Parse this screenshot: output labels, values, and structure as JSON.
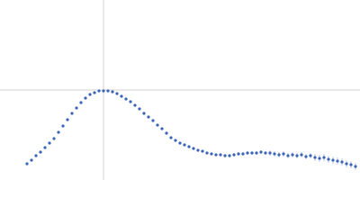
{
  "chart_data": {
    "type": "scatter",
    "xlim": [
      0,
      4
    ],
    "ylim": [
      0,
      2
    ],
    "reference_lines": {
      "x": 1.15,
      "y": 1.0,
      "color": "#d0d0d0"
    },
    "color": "#3a64b8",
    "error_color": "#9fb3dd",
    "x": [
      0.3,
      0.35,
      0.4,
      0.45,
      0.5,
      0.55,
      0.6,
      0.65,
      0.7,
      0.75,
      0.8,
      0.85,
      0.9,
      0.95,
      1.0,
      1.05,
      1.1,
      1.15,
      1.2,
      1.25,
      1.3,
      1.35,
      1.4,
      1.45,
      1.5,
      1.55,
      1.6,
      1.65,
      1.7,
      1.75,
      1.8,
      1.85,
      1.9,
      1.95,
      2.0,
      2.05,
      2.1,
      2.15,
      2.2,
      2.25,
      2.3,
      2.35,
      2.4,
      2.45,
      2.5,
      2.55,
      2.6,
      2.65,
      2.7,
      2.75,
      2.8,
      2.85,
      2.9,
      2.95,
      3.0,
      3.05,
      3.1,
      3.15,
      3.2,
      3.25,
      3.3,
      3.35,
      3.4,
      3.45,
      3.5,
      3.55,
      3.6,
      3.65,
      3.7,
      3.75,
      3.8,
      3.85,
      3.9,
      3.95
    ],
    "values": [
      0.18,
      0.22,
      0.27,
      0.31,
      0.36,
      0.41,
      0.46,
      0.53,
      0.6,
      0.67,
      0.74,
      0.8,
      0.86,
      0.91,
      0.95,
      0.97,
      0.99,
      0.99,
      0.99,
      0.98,
      0.96,
      0.93,
      0.9,
      0.87,
      0.83,
      0.79,
      0.74,
      0.7,
      0.66,
      0.61,
      0.57,
      0.52,
      0.47,
      0.44,
      0.41,
      0.39,
      0.37,
      0.35,
      0.33,
      0.32,
      0.3,
      0.29,
      0.28,
      0.28,
      0.27,
      0.27,
      0.28,
      0.29,
      0.29,
      0.3,
      0.3,
      0.3,
      0.31,
      0.3,
      0.3,
      0.29,
      0.28,
      0.29,
      0.27,
      0.28,
      0.27,
      0.28,
      0.26,
      0.27,
      0.25,
      0.24,
      0.25,
      0.23,
      0.22,
      0.21,
      0.2,
      0.18,
      0.17,
      0.15
    ],
    "errors": [
      0.005,
      0.005,
      0.005,
      0.005,
      0.005,
      0.005,
      0.005,
      0.005,
      0.005,
      0.005,
      0.005,
      0.005,
      0.005,
      0.005,
      0.005,
      0.005,
      0.005,
      0.005,
      0.005,
      0.005,
      0.005,
      0.005,
      0.005,
      0.005,
      0.005,
      0.005,
      0.005,
      0.005,
      0.005,
      0.005,
      0.005,
      0.005,
      0.005,
      0.005,
      0.01,
      0.01,
      0.01,
      0.01,
      0.01,
      0.01,
      0.01,
      0.01,
      0.01,
      0.01,
      0.02,
      0.02,
      0.02,
      0.02,
      0.02,
      0.02,
      0.02,
      0.02,
      0.02,
      0.02,
      0.03,
      0.03,
      0.03,
      0.03,
      0.03,
      0.03,
      0.03,
      0.03,
      0.03,
      0.03,
      0.04,
      0.04,
      0.04,
      0.04,
      0.04,
      0.04,
      0.04,
      0.04,
      0.04,
      0.04
    ]
  }
}
